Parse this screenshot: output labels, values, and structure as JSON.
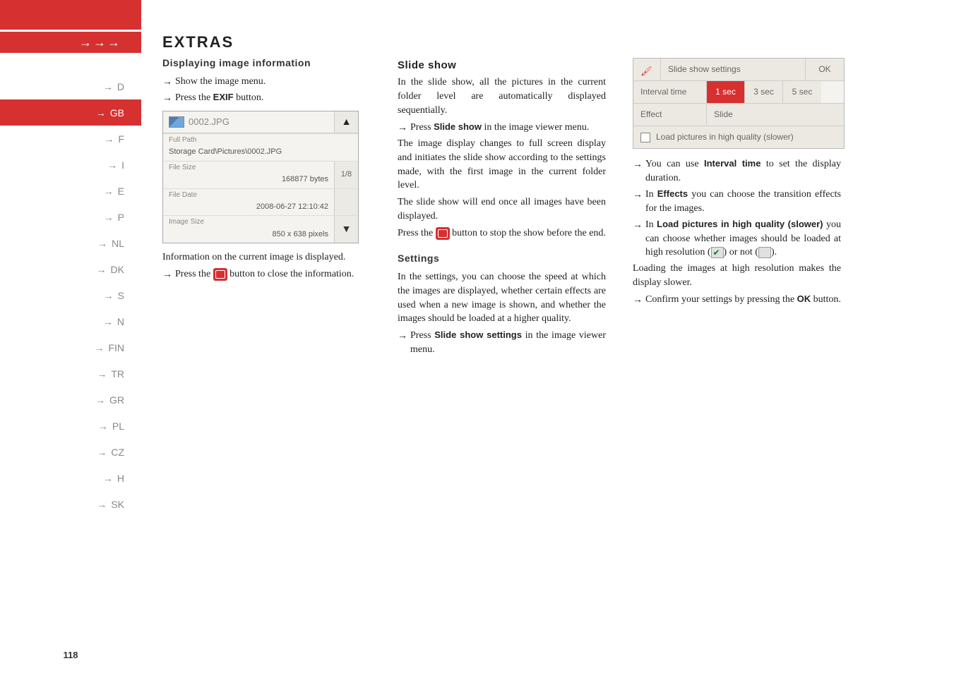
{
  "page_number": "118",
  "title": "EXTRAS",
  "arrows": "→→→",
  "sidebar": {
    "items": [
      {
        "arrow": "→",
        "label": "D"
      },
      {
        "arrow": "→",
        "label": "GB"
      },
      {
        "arrow": "→",
        "label": "F"
      },
      {
        "arrow": "→",
        "label": "I"
      },
      {
        "arrow": "→",
        "label": "E"
      },
      {
        "arrow": "→",
        "label": "P"
      },
      {
        "arrow": "→",
        "label": "NL"
      },
      {
        "arrow": "→",
        "label": "DK"
      },
      {
        "arrow": "→",
        "label": "S"
      },
      {
        "arrow": "→",
        "label": "N"
      },
      {
        "arrow": "→",
        "label": "FIN"
      },
      {
        "arrow": "→",
        "label": "TR"
      },
      {
        "arrow": "→",
        "label": "GR"
      },
      {
        "arrow": "→",
        "label": "PL"
      },
      {
        "arrow": "→",
        "label": "CZ"
      },
      {
        "arrow": "→",
        "label": "H"
      },
      {
        "arrow": "→",
        "label": "SK"
      }
    ],
    "active_index": 1
  },
  "col1": {
    "heading": "Displaying image information",
    "line1": "Show the image menu.",
    "line2_pre": "Press the ",
    "line2_bold": "EXIF",
    "line2_post": " button.",
    "filebox": {
      "filename": "0002.JPG",
      "path_label": "Full Path",
      "path_value": "Storage Card\\Pictures\\0002.JPG",
      "size_label": "File Size",
      "size_value": "168877 bytes",
      "date_label": "File Date",
      "date_value": "2008-06-27 12:10:42",
      "imgsize_label": "Image Size",
      "imgsize_value": "850 x 638 pixels",
      "counter": "1/8",
      "up": "▲",
      "down": "▼"
    },
    "after1": "Information on the current image is displayed.",
    "after2_pre": "Press the ",
    "after2_post": " button to close the information."
  },
  "col2": {
    "heading": "Slide show",
    "p1": "In the slide show, all the pictures in the current folder level are automatically displayed sequentially.",
    "a1_pre": "Press ",
    "a1_bold": "Slide show",
    "a1_post": " in the image viewer menu.",
    "p2": "The image display changes to full screen display and initiates the slide show according to the settings made, with the first image in the current folder level.",
    "p3": "The slide show will end once all images have been displayed.",
    "p4_pre": "Press the ",
    "p4_post": " button to stop the show before the end.",
    "sub2": "Settings",
    "p5": "In the settings, you can choose the speed at which the images are displayed, whether certain effects are used when a new image is shown, and whether the images should be loaded at a higher quality.",
    "a2_pre": "Press ",
    "a2_bold": "Slide show settings",
    "a2_post": " in the image viewer menu."
  },
  "col3": {
    "settings": {
      "title": "Slide show settings",
      "ok": "OK",
      "interval_label": "Interval time",
      "intervals": [
        "1 sec",
        "3 sec",
        "5 sec"
      ],
      "interval_selected": 0,
      "effect_label": "Effect",
      "effect_value": "Slide",
      "load_label": "Load pictures in high quality (slower)"
    },
    "a1_pre": "You can use ",
    "a1_bold": "Interval time",
    "a1_post": " to set the display duration.",
    "a2_pre": "In ",
    "a2_bold": "Effects",
    "a2_post": " you can choose the transition effects for the images.",
    "a3_pre": "In ",
    "a3_bold": "Load pictures in high quality (slower)",
    "a3_post": " you can choose whether images should be loaded at high resolution (",
    "a3_mid": ") or not (",
    "a3_end": ").",
    "p1": "Loading the images at high resolution makes the display slower.",
    "a4_pre": "Confirm your settings by pressing the ",
    "a4_bold": "OK",
    "a4_post": " button."
  }
}
